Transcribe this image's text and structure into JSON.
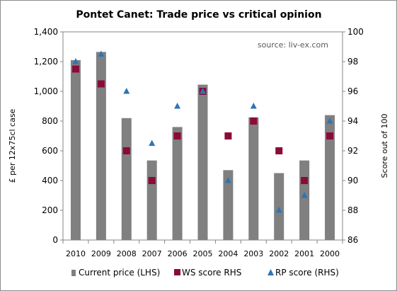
{
  "chart_data": {
    "type": "bar",
    "title": "Pontet Canet: Trade price vs critical opinion",
    "source_note": "source: liv-ex.com",
    "ylabel_left": "£ per 12x75cl case",
    "ylabel_right": "Score out of 100",
    "ylim_left": [
      0,
      1400
    ],
    "ylim_right": [
      86,
      100
    ],
    "yticks_left": [
      "0",
      "200",
      "400",
      "600",
      "800",
      "1,000",
      "1,200",
      "1,400"
    ],
    "yticks_right": [
      "86",
      "88",
      "90",
      "92",
      "94",
      "96",
      "98",
      "100"
    ],
    "categories": [
      "2010",
      "2009",
      "2008",
      "2007",
      "2006",
      "2005",
      "2004",
      "2003",
      "2002",
      "2001",
      "2000"
    ],
    "series": [
      {
        "name": "Current price (LHS)",
        "type": "bar",
        "axis": "left",
        "color": "#808080",
        "values": [
          1210,
          1265,
          820,
          535,
          760,
          1045,
          470,
          825,
          450,
          535,
          840
        ]
      },
      {
        "name": "WS score RHS",
        "type": "marker-square",
        "axis": "right",
        "color": "#8b0a3a",
        "values": [
          97.5,
          96.5,
          92,
          90,
          93,
          96,
          93,
          94,
          92,
          90,
          93
        ]
      },
      {
        "name": "RP score (RHS)",
        "type": "marker-triangle",
        "axis": "right",
        "color": "#2e74b5",
        "values": [
          98,
          98.5,
          96,
          92.5,
          95,
          96,
          90,
          95,
          88,
          89,
          94
        ]
      }
    ],
    "grid": false,
    "legend_position": "bottom"
  }
}
